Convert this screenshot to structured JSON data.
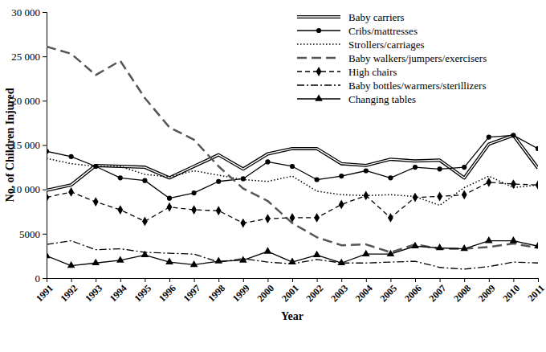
{
  "chart_data": {
    "type": "line",
    "x_label": "Year",
    "y_label": "No. of Children Injured",
    "x": [
      1991,
      1992,
      1993,
      1994,
      1995,
      1996,
      1997,
      1998,
      1999,
      2000,
      2001,
      2002,
      2003,
      2004,
      2005,
      2006,
      2007,
      2008,
      2009,
      2010,
      2011
    ],
    "xlim": [
      1991,
      2011
    ],
    "xticks": [
      1991,
      1992,
      1993,
      1994,
      1995,
      1996,
      1997,
      1998,
      1999,
      2000,
      2001,
      2002,
      2003,
      2004,
      2005,
      2006,
      2007,
      2008,
      2009,
      2010,
      2011
    ],
    "ylim": [
      0,
      30000
    ],
    "yticks": [
      0,
      5000,
      {
        "value": 10000,
        "label": "10 000"
      },
      {
        "value": 15000,
        "label": "15 000"
      },
      {
        "value": 20000,
        "label": "20 000"
      },
      {
        "value": 25000,
        "label": "25 000"
      },
      {
        "value": 30000,
        "label": "30 000"
      }
    ],
    "grid": false,
    "legend": "top-right",
    "series": [
      {
        "name": "Baby carriers",
        "color": "#000000",
        "line_style": "double",
        "marker": "none",
        "values": [
          9900,
          10500,
          12700,
          12600,
          12500,
          11300,
          12600,
          13900,
          12300,
          14000,
          14600,
          14600,
          12900,
          12700,
          13400,
          13200,
          13300,
          11300,
          15100,
          16100,
          12400
        ]
      },
      {
        "name": "Cribs/mattresses",
        "color": "#000000",
        "line_style": "solid",
        "marker": "circle",
        "values": [
          14300,
          13700,
          12600,
          11300,
          11000,
          9000,
          9600,
          10900,
          11200,
          13100,
          12600,
          11100,
          11500,
          12100,
          11300,
          12500,
          12300,
          12500,
          15900,
          16100,
          14600
        ]
      },
      {
        "name": "Strollers/carriages",
        "color": "#000000",
        "line_style": "dotted",
        "marker": "none",
        "values": [
          13500,
          12900,
          12600,
          12600,
          11700,
          11400,
          12100,
          11600,
          11100,
          10900,
          11500,
          9800,
          9400,
          9300,
          9400,
          9200,
          8200,
          10200,
          11500,
          10200,
          10500
        ]
      },
      {
        "name": "Baby walkers/jumpers/exercisers",
        "color": "#555555",
        "line_style": "long_dash",
        "marker": "none",
        "values": [
          26100,
          25300,
          22900,
          24500,
          20300,
          17000,
          15600,
          12600,
          10100,
          8700,
          6200,
          4600,
          3700,
          3800,
          2900,
          3800,
          3300,
          3300,
          3500,
          3900,
          3400
        ]
      },
      {
        "name": "High chairs",
        "color": "#000000",
        "line_style": "dashed",
        "marker": "diamond",
        "values": [
          9100,
          9700,
          8600,
          7700,
          6400,
          8000,
          7700,
          7600,
          6200,
          6700,
          6800,
          6800,
          8300,
          9300,
          6800,
          9100,
          9200,
          9400,
          10800,
          10600,
          10500
        ]
      },
      {
        "name": "Baby bottles/warmers/sterillizers",
        "color": "#000000",
        "line_style": "dash_dot",
        "marker": "none",
        "values": [
          3800,
          4200,
          3200,
          3300,
          2900,
          2800,
          2700,
          1800,
          2200,
          1800,
          1600,
          2100,
          1700,
          1700,
          1800,
          1900,
          1200,
          1000,
          1300,
          1800,
          1700
        ]
      },
      {
        "name": "Changing tables",
        "color": "#000000",
        "line_style": "solid",
        "marker": "triangle",
        "values": [
          2500,
          1400,
          1700,
          2000,
          2600,
          1800,
          1500,
          1900,
          2000,
          3000,
          1800,
          2600,
          1700,
          2700,
          2700,
          3600,
          3400,
          3300,
          4200,
          4200,
          3600
        ]
      }
    ]
  }
}
